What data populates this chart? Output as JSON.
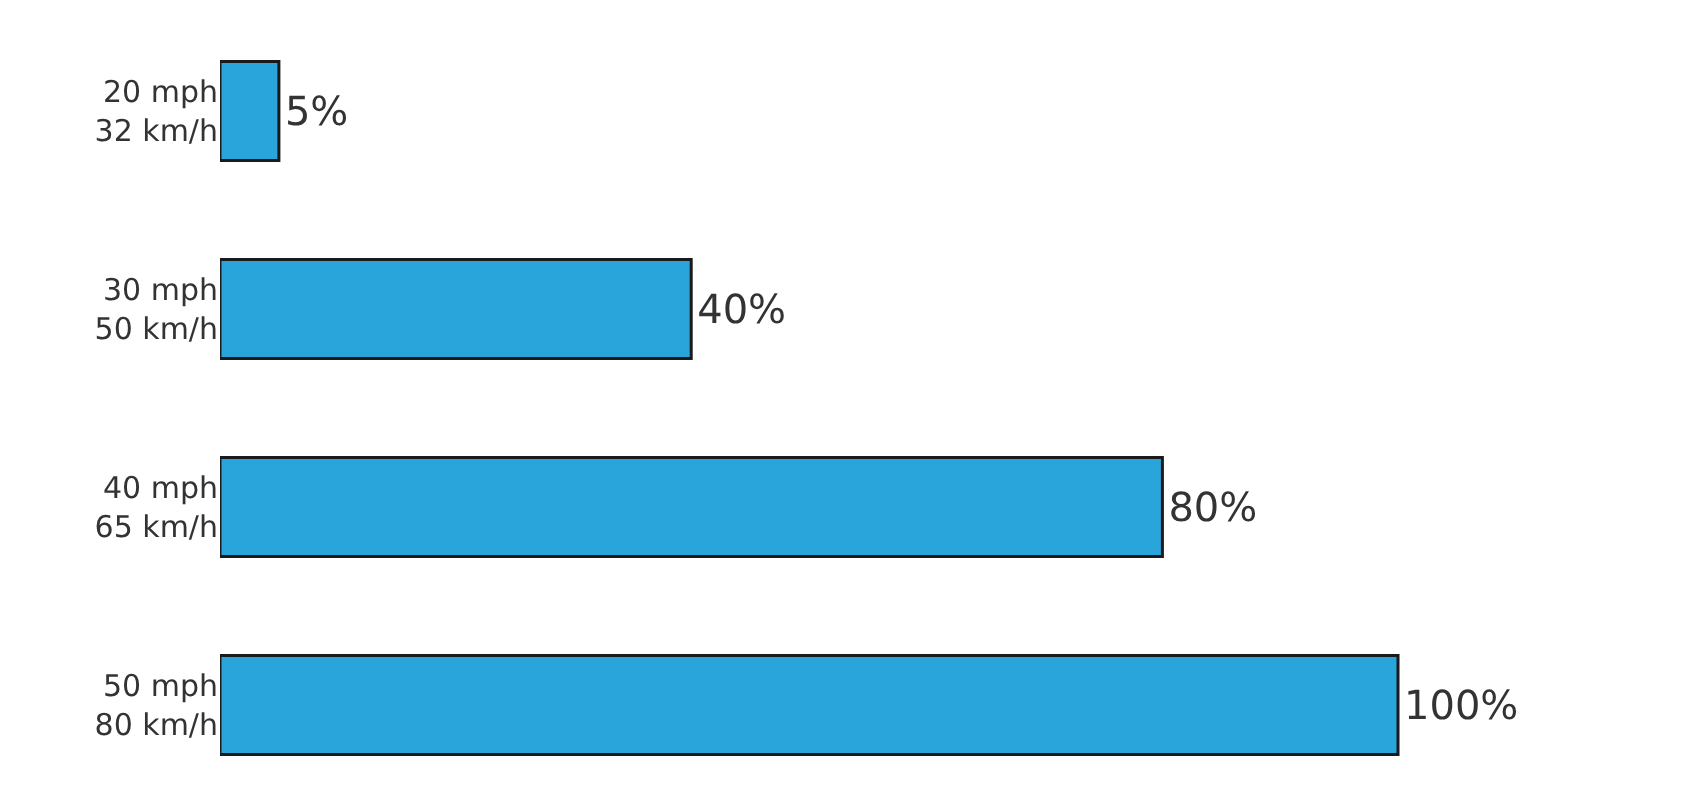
{
  "chart_data": {
    "type": "bar",
    "orientation": "horizontal",
    "categories": [
      "20 mph\n32 km/h",
      "30 mph\n50 km/h",
      "40 mph\n65 km/h",
      "50 mph\n80 km/h"
    ],
    "values": [
      5,
      40,
      80,
      100
    ],
    "value_labels": [
      "5%",
      "40%",
      "80%",
      "100%"
    ],
    "color": "#2aa5dc",
    "grid": false,
    "legend": false
  }
}
